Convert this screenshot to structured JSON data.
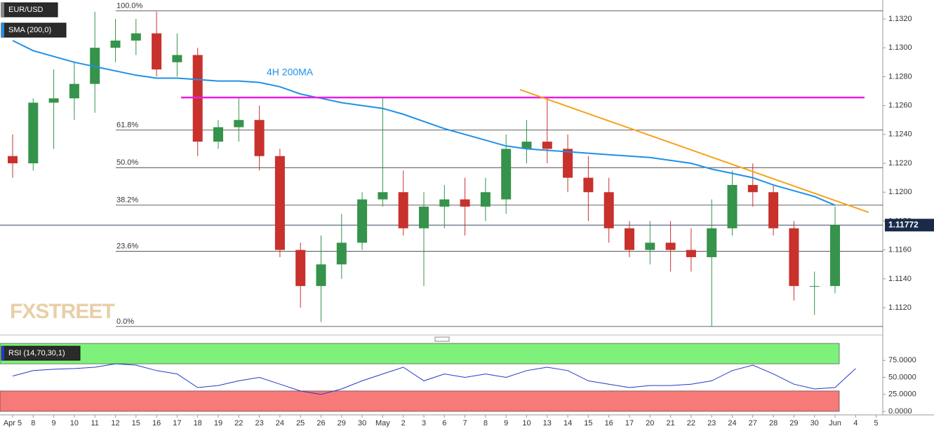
{
  "chart_data": [
    {
      "type": "candlestick",
      "title": "EUR/USD",
      "categories": [
        "Apr 5",
        "8",
        "9",
        "10",
        "11",
        "12",
        "15",
        "16",
        "17",
        "18",
        "19",
        "22",
        "23",
        "24",
        "25",
        "26",
        "29",
        "30",
        "May",
        "2",
        "3",
        "6",
        "7",
        "8",
        "9",
        "10",
        "13",
        "14",
        "15",
        "16",
        "17",
        "20",
        "21",
        "22",
        "23",
        "24",
        "27",
        "28",
        "29",
        "30",
        "Jun",
        "4",
        "5"
      ],
      "open": [
        1.1225,
        1.122,
        1.1262,
        1.1265,
        1.1275,
        1.13,
        1.1305,
        1.131,
        1.129,
        1.1295,
        1.1235,
        1.1245,
        1.125,
        1.1225,
        1.116,
        1.1135,
        1.115,
        1.1165,
        1.1195,
        1.12,
        1.1175,
        1.119,
        1.1195,
        1.119,
        1.1195,
        1.123,
        1.1235,
        1.123,
        1.121,
        1.12,
        1.1175,
        1.116,
        1.1165,
        1.116,
        1.1155,
        1.1175,
        1.1205,
        1.12,
        1.1175,
        1.1135,
        1.1135,
        null,
        null
      ],
      "high": [
        1.124,
        1.1265,
        1.1285,
        1.129,
        1.1325,
        1.132,
        1.132,
        1.1325,
        1.131,
        1.13,
        1.125,
        1.1265,
        1.126,
        1.123,
        1.1165,
        1.117,
        1.1185,
        1.12,
        1.1265,
        1.1215,
        1.12,
        1.1205,
        1.121,
        1.121,
        1.124,
        1.125,
        1.1265,
        1.124,
        1.1225,
        1.121,
        1.118,
        1.118,
        1.118,
        1.1175,
        1.1195,
        1.1215,
        1.122,
        1.1205,
        1.118,
        1.1145,
        1.119,
        null,
        null
      ],
      "low": [
        1.121,
        1.1215,
        1.123,
        1.125,
        1.1255,
        1.129,
        1.1295,
        1.128,
        1.128,
        1.1225,
        1.123,
        1.1235,
        1.1215,
        1.1155,
        1.112,
        1.111,
        1.114,
        1.116,
        1.119,
        1.117,
        1.1135,
        1.1175,
        1.117,
        1.118,
        1.1185,
        1.122,
        1.122,
        1.12,
        1.118,
        1.1165,
        1.1155,
        1.115,
        1.1145,
        1.1145,
        1.1107,
        1.117,
        1.119,
        1.117,
        1.1125,
        1.1115,
        1.113,
        null,
        null
      ],
      "close": [
        1.122,
        1.1262,
        1.1265,
        1.1275,
        1.13,
        1.1305,
        1.131,
        1.1285,
        1.1295,
        1.1235,
        1.1245,
        1.125,
        1.1225,
        1.116,
        1.1135,
        1.115,
        1.1165,
        1.1195,
        1.12,
        1.1175,
        1.119,
        1.1195,
        1.119,
        1.12,
        1.123,
        1.1235,
        1.123,
        1.121,
        1.12,
        1.1175,
        1.116,
        1.1165,
        1.116,
        1.1155,
        1.1175,
        1.1205,
        1.12,
        1.1175,
        1.1135,
        1.1135,
        1.11772,
        null,
        null
      ],
      "up_color": "#35934b",
      "down_color": "#c8312c",
      "series": [
        {
          "name": "SMA (200,0)",
          "color": "#1e90e8",
          "values": [
            1.1305,
            1.1298,
            1.1294,
            1.129,
            1.1287,
            1.1284,
            1.1281,
            1.1279,
            1.1279,
            1.1278,
            1.1277,
            1.1277,
            1.1276,
            1.1273,
            1.1268,
            1.1265,
            1.1262,
            1.126,
            1.1258,
            1.1254,
            1.1249,
            1.1244,
            1.124,
            1.1236,
            1.1232,
            1.123,
            1.1229,
            1.1228,
            1.1227,
            1.1226,
            1.1225,
            1.1224,
            1.1222,
            1.122,
            1.1216,
            1.1213,
            1.121,
            1.1205,
            1.1201,
            1.1197,
            1.1191,
            null,
            null
          ]
        }
      ],
      "annotation": "4H 200MA",
      "watermark": "FXSTREET",
      "fib_levels": [
        {
          "label": "100.0%",
          "value": 1.13255
        },
        {
          "label": "61.8%",
          "value": 1.1243
        },
        {
          "label": "50.0%",
          "value": 1.1217
        },
        {
          "label": "38.2%",
          "value": 1.1191
        },
        {
          "label": "23.6%",
          "value": 1.1159
        },
        {
          "label": "0.0%",
          "value": 1.1107
        }
      ],
      "resistance": {
        "value": 1.12656,
        "color": "#e81ee0"
      },
      "trendline": {
        "values": [
          1.1271,
          1.1186
        ],
        "color": "#f7a21b"
      },
      "last_price": 1.11772,
      "ylim": [
        1.11011,
        1.13331
      ],
      "yticks": [
        {
          "value": 1.112,
          "label": "1.1120"
        },
        {
          "value": 1.114,
          "label": "1.1140"
        },
        {
          "value": 1.116,
          "label": "1.1160"
        },
        {
          "value": 1.118,
          "label": "1.1180"
        },
        {
          "value": 1.12,
          "label": "1.1200"
        },
        {
          "value": 1.122,
          "label": "1.1220"
        },
        {
          "value": 1.124,
          "label": "1.1240"
        },
        {
          "value": 1.126,
          "label": "1.1260"
        },
        {
          "value": 1.128,
          "label": "1.1280"
        },
        {
          "value": 1.13,
          "label": "1.1300"
        },
        {
          "value": 1.132,
          "label": "1.1320"
        }
      ]
    },
    {
      "type": "line",
      "series": [
        {
          "name": "RSI (14,70,30,1)",
          "color": "#2637c8",
          "values": [
            52,
            60,
            62,
            63,
            65,
            70,
            68,
            60,
            55,
            35,
            38,
            45,
            50,
            40,
            30,
            25,
            33,
            45,
            55,
            65,
            45,
            55,
            50,
            55,
            50,
            60,
            65,
            60,
            45,
            40,
            35,
            38,
            38,
            40,
            45,
            60,
            68,
            55,
            40,
            33,
            35,
            63,
            null
          ]
        }
      ],
      "bands": [
        {
          "range": [
            70,
            100
          ],
          "color": "#7ef17a"
        },
        {
          "range": [
            0,
            30
          ],
          "color": "#f77a78"
        }
      ],
      "ylim": [
        0,
        100
      ],
      "yticks": [
        {
          "value": 0,
          "label": "0.0000"
        },
        {
          "value": 25,
          "label": "25.0000"
        },
        {
          "value": 50,
          "label": "50.0000"
        },
        {
          "value": 75,
          "label": "75.0000"
        }
      ]
    }
  ]
}
